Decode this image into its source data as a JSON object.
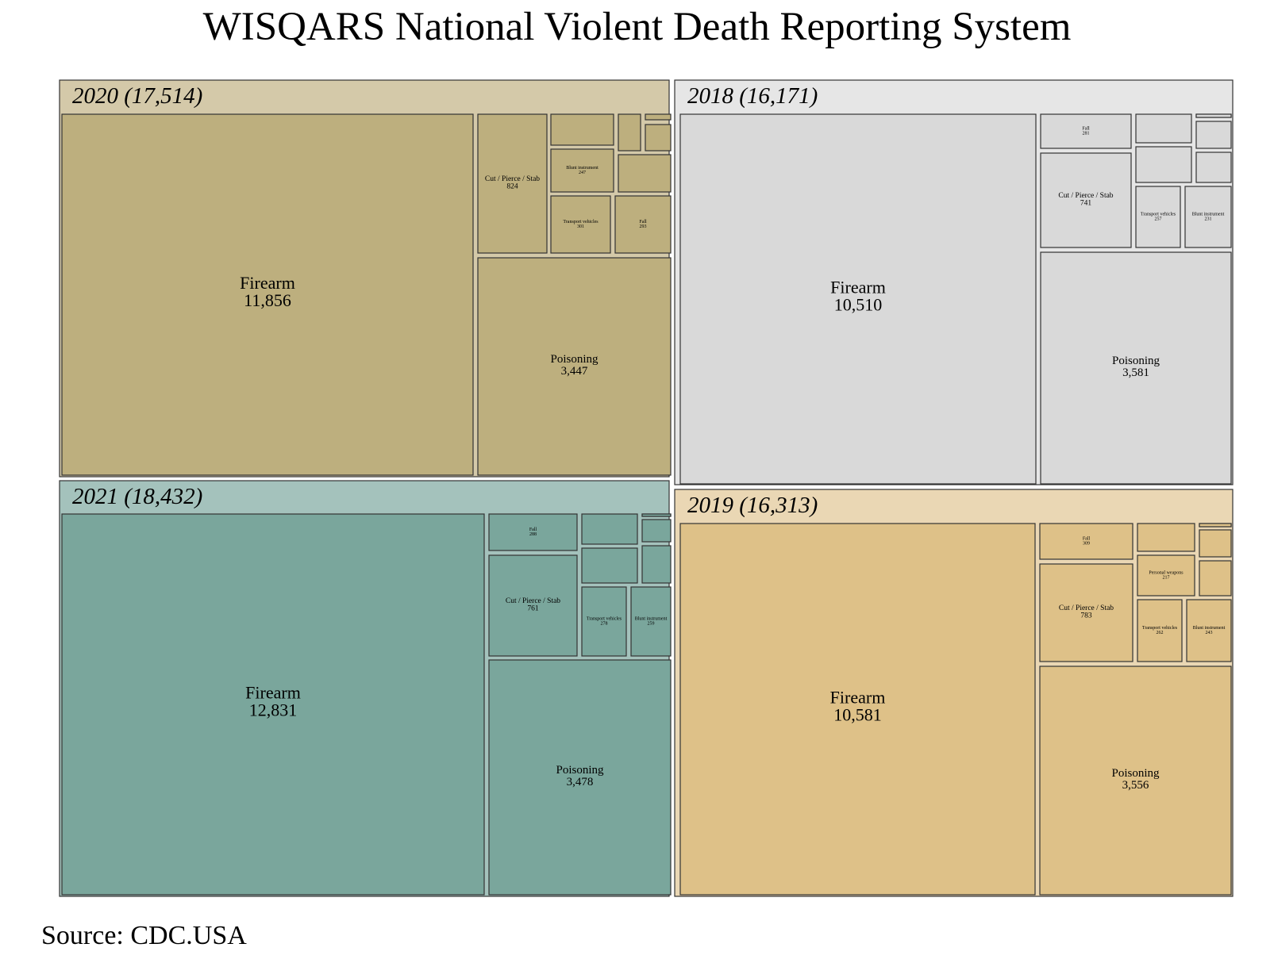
{
  "title": "WISQARS National Violent Death Reporting System",
  "source": "Source: CDC.USA",
  "chart_data": {
    "type": "treemap",
    "title": "WISQARS National Violent Death Reporting System",
    "groups": [
      {
        "id": "g2020",
        "label": "2020 (17,514)",
        "year": 2020,
        "total": 17514,
        "header_color": "#d4c9a9",
        "fill_color": "#bdaf7e",
        "cells": [
          {
            "label": "Firearm",
            "value": 11856,
            "display": "11,856"
          },
          {
            "label": "Poisoning",
            "value": 3447,
            "display": "3,447"
          },
          {
            "label": "Cut / Pierce / Stab",
            "value": 824,
            "display": "824"
          },
          {
            "label": "Transport vehicles",
            "value": 301,
            "display": "301"
          },
          {
            "label": "Fall",
            "value": 293,
            "display": "293"
          },
          {
            "label": "Blunt instrument",
            "value": 247,
            "display": "247"
          },
          {
            "label": "",
            "value": null,
            "display": ""
          },
          {
            "label": "",
            "value": null,
            "display": ""
          },
          {
            "label": "",
            "value": null,
            "display": ""
          },
          {
            "label": "",
            "value": null,
            "display": ""
          },
          {
            "label": "",
            "value": null,
            "display": ""
          }
        ]
      },
      {
        "id": "g2018",
        "label": "2018 (16,171)",
        "year": 2018,
        "total": 16171,
        "header_color": "#e6e6e6",
        "fill_color": "#d9d9d9",
        "cells": [
          {
            "label": "Firearm",
            "value": 10510,
            "display": "10,510"
          },
          {
            "label": "Poisoning",
            "value": 3581,
            "display": "3,581"
          },
          {
            "label": "Fall",
            "value": 281,
            "display": "281"
          },
          {
            "label": "Cut / Pierce / Stab",
            "value": 741,
            "display": "741"
          },
          {
            "label": "Transport vehicles",
            "value": 257,
            "display": "257"
          },
          {
            "label": "Blunt instrument",
            "value": 231,
            "display": "231"
          },
          {
            "label": "",
            "value": null,
            "display": ""
          },
          {
            "label": "",
            "value": null,
            "display": ""
          },
          {
            "label": "",
            "value": null,
            "display": ""
          },
          {
            "label": "",
            "value": null,
            "display": ""
          },
          {
            "label": "",
            "value": null,
            "display": ""
          },
          {
            "label": "",
            "value": null,
            "display": ""
          }
        ]
      },
      {
        "id": "g2021",
        "label": "2021 (18,432)",
        "year": 2021,
        "total": 18432,
        "header_color": "#a4c2bc",
        "fill_color": "#7aa69c",
        "cells": [
          {
            "label": "Firearm",
            "value": 12831,
            "display": "12,831"
          },
          {
            "label": "Poisoning",
            "value": 3478,
            "display": "3,478"
          },
          {
            "label": "Fall",
            "value": 288,
            "display": "288"
          },
          {
            "label": "Cut / Pierce / Stab",
            "value": 761,
            "display": "761"
          },
          {
            "label": "Transport vehicles",
            "value": 278,
            "display": "278"
          },
          {
            "label": "Blunt instrument",
            "value": 259,
            "display": "259"
          },
          {
            "label": "",
            "value": null,
            "display": ""
          },
          {
            "label": "",
            "value": null,
            "display": ""
          },
          {
            "label": "",
            "value": null,
            "display": ""
          },
          {
            "label": "",
            "value": null,
            "display": ""
          },
          {
            "label": "",
            "value": null,
            "display": ""
          },
          {
            "label": "",
            "value": null,
            "display": ""
          }
        ]
      },
      {
        "id": "g2019",
        "label": "2019 (16,313)",
        "year": 2019,
        "total": 16313,
        "header_color": "#ead7b4",
        "fill_color": "#dec188",
        "cells": [
          {
            "label": "Firearm",
            "value": 10581,
            "display": "10,581"
          },
          {
            "label": "Poisoning",
            "value": 3556,
            "display": "3,556"
          },
          {
            "label": "Fall",
            "value": 309,
            "display": "309"
          },
          {
            "label": "Cut / Pierce / Stab",
            "value": 783,
            "display": "783"
          },
          {
            "label": "Personal weapons",
            "value": 217,
            "display": "217"
          },
          {
            "label": "Transport vehicles",
            "value": 262,
            "display": "262"
          },
          {
            "label": "Blunt instrument",
            "value": 243,
            "display": "243"
          },
          {
            "label": "",
            "value": null,
            "display": ""
          },
          {
            "label": "",
            "value": null,
            "display": ""
          },
          {
            "label": "",
            "value": null,
            "display": ""
          },
          {
            "label": "",
            "value": null,
            "display": ""
          },
          {
            "label": "",
            "value": null,
            "display": ""
          }
        ]
      }
    ]
  }
}
